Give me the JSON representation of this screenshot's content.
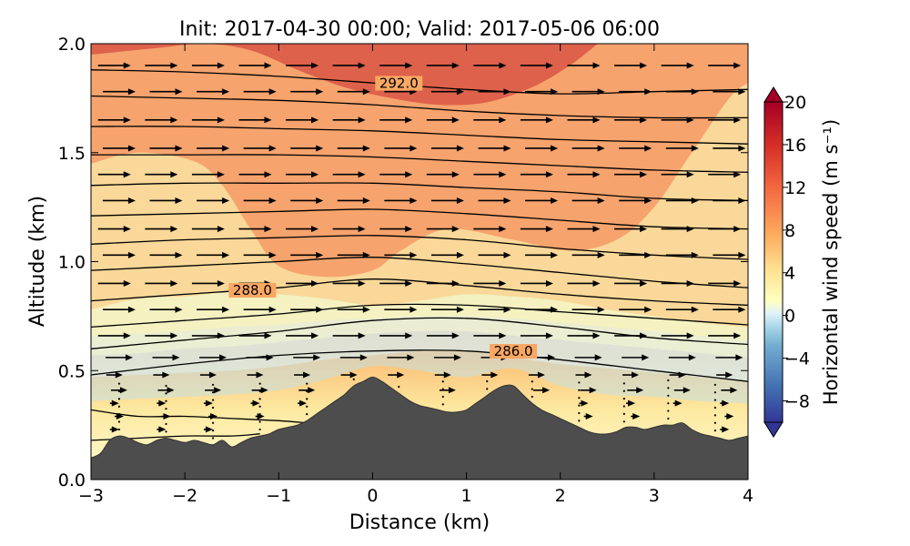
{
  "chart_data": {
    "type": "contour-cross-section",
    "title": "Init: 2017-04-30 00:00; Valid: 2017-05-06 06:00",
    "xlabel": "Distance (km)",
    "ylabel": "Altitude (km)",
    "xlim": [
      -3,
      4
    ],
    "ylim": [
      0.0,
      2.0
    ],
    "x_ticks": [
      -3,
      -2,
      -1,
      0,
      1,
      2,
      3,
      4
    ],
    "x_tick_labels": [
      "−3",
      "−2",
      "−1",
      "0",
      "1",
      "2",
      "3",
      "4"
    ],
    "y_ticks": [
      0.0,
      0.5,
      1.0,
      1.5,
      2.0
    ],
    "y_tick_labels": [
      "0.0",
      "0.5",
      "1.0",
      "1.5",
      "2.0"
    ],
    "colorbar": {
      "label": "Horizontal wind speed (m s⁻¹)",
      "range": [
        -10,
        20
      ],
      "ticks": [
        -8,
        -4,
        0,
        4,
        8,
        12,
        16,
        20
      ],
      "tick_labels": [
        "−8",
        "−4",
        "0",
        "4",
        "8",
        "12",
        "16",
        "20"
      ],
      "colormap": "RdYlBu_r"
    },
    "terrain": {
      "x": [
        -3,
        -2.9,
        -2.8,
        -2.7,
        -2.6,
        -2.5,
        -2.4,
        -2.3,
        -2.2,
        -2.1,
        -2.0,
        -1.9,
        -1.8,
        -1.7,
        -1.6,
        -1.5,
        -1.4,
        -1.3,
        -1.2,
        -1.1,
        -1.0,
        -0.9,
        -0.8,
        -0.7,
        -0.6,
        -0.5,
        -0.4,
        -0.3,
        -0.2,
        -0.1,
        0.0,
        0.1,
        0.2,
        0.3,
        0.4,
        0.5,
        0.6,
        0.7,
        0.8,
        0.9,
        1.0,
        1.1,
        1.2,
        1.3,
        1.4,
        1.5,
        1.6,
        1.7,
        1.8,
        1.9,
        2.0,
        2.1,
        2.2,
        2.3,
        2.4,
        2.5,
        2.6,
        2.7,
        2.8,
        2.9,
        3.0,
        3.1,
        3.2,
        3.3,
        3.4,
        3.5,
        3.6,
        3.7,
        3.8,
        3.9,
        4.0
      ],
      "altitude_km": [
        0.1,
        0.12,
        0.18,
        0.2,
        0.19,
        0.17,
        0.16,
        0.18,
        0.19,
        0.18,
        0.17,
        0.18,
        0.17,
        0.16,
        0.18,
        0.15,
        0.17,
        0.19,
        0.2,
        0.21,
        0.23,
        0.24,
        0.25,
        0.27,
        0.3,
        0.33,
        0.36,
        0.39,
        0.43,
        0.45,
        0.47,
        0.45,
        0.42,
        0.39,
        0.36,
        0.34,
        0.33,
        0.32,
        0.31,
        0.31,
        0.32,
        0.35,
        0.38,
        0.41,
        0.43,
        0.43,
        0.39,
        0.35,
        0.32,
        0.3,
        0.28,
        0.26,
        0.24,
        0.22,
        0.21,
        0.21,
        0.22,
        0.24,
        0.24,
        0.23,
        0.24,
        0.25,
        0.25,
        0.26,
        0.23,
        0.21,
        0.2,
        0.19,
        0.18,
        0.19,
        0.2
      ]
    },
    "wind_contours": [
      {
        "level": 18,
        "points": [
          [
            -3,
            1.95
          ],
          [
            -2.3,
            1.98
          ],
          [
            -1.8,
            2.0
          ],
          [
            -1.3,
            1.97
          ],
          [
            -0.8,
            1.88
          ],
          [
            -0.3,
            1.8
          ],
          [
            0.2,
            1.75
          ],
          [
            0.7,
            1.72
          ],
          [
            1.2,
            1.73
          ],
          [
            1.7,
            1.8
          ],
          [
            2.1,
            1.9
          ],
          [
            2.4,
            2.0
          ]
        ]
      },
      {
        "level": 14,
        "points": [
          [
            -3,
            1.45
          ],
          [
            -2.5,
            1.5
          ],
          [
            -1.9,
            1.46
          ],
          [
            -1.6,
            1.35
          ],
          [
            -1.3,
            1.15
          ],
          [
            -1.0,
            0.98
          ],
          [
            -0.5,
            0.93
          ],
          [
            0.0,
            0.96
          ],
          [
            0.3,
            1.05
          ],
          [
            0.8,
            1.15
          ],
          [
            1.5,
            1.1
          ],
          [
            2.1,
            1.05
          ],
          [
            2.6,
            1.1
          ],
          [
            3.0,
            1.25
          ],
          [
            3.4,
            1.5
          ],
          [
            3.8,
            1.75
          ],
          [
            4.0,
            1.82
          ]
        ]
      },
      {
        "level": 10,
        "points": [
          [
            -3,
            0.78
          ],
          [
            -2.5,
            0.83
          ],
          [
            -2.0,
            0.84
          ],
          [
            -1.5,
            0.86
          ],
          [
            -1.0,
            0.85
          ],
          [
            -0.5,
            0.83
          ],
          [
            0.0,
            0.8
          ],
          [
            0.5,
            0.82
          ],
          [
            1.0,
            0.85
          ],
          [
            1.5,
            0.84
          ],
          [
            2.0,
            0.82
          ],
          [
            2.5,
            0.78
          ],
          [
            3.0,
            0.75
          ],
          [
            3.5,
            0.72
          ],
          [
            4.0,
            0.7
          ]
        ]
      },
      {
        "level": 6,
        "points": [
          [
            -3,
            0.66
          ],
          [
            -2.5,
            0.67
          ],
          [
            -2.0,
            0.68
          ],
          [
            -1.5,
            0.7
          ],
          [
            -1.0,
            0.71
          ],
          [
            -0.5,
            0.73
          ],
          [
            0.0,
            0.74
          ],
          [
            0.5,
            0.75
          ],
          [
            1.0,
            0.75
          ],
          [
            1.5,
            0.74
          ],
          [
            2.0,
            0.72
          ],
          [
            2.5,
            0.7
          ],
          [
            3.0,
            0.68
          ],
          [
            3.5,
            0.66
          ],
          [
            4.0,
            0.64
          ]
        ]
      },
      {
        "level": 4,
        "points": [
          [
            -3,
            0.57
          ],
          [
            -2.5,
            0.58
          ],
          [
            -2.0,
            0.6
          ],
          [
            -1.5,
            0.61
          ],
          [
            -1.0,
            0.63
          ],
          [
            -0.5,
            0.65
          ],
          [
            0.0,
            0.67
          ],
          [
            0.5,
            0.68
          ],
          [
            1.0,
            0.68
          ],
          [
            1.5,
            0.66
          ],
          [
            2.0,
            0.64
          ],
          [
            2.5,
            0.62
          ],
          [
            3.0,
            0.6
          ],
          [
            3.5,
            0.58
          ],
          [
            4.0,
            0.56
          ]
        ]
      },
      {
        "level": 2,
        "points": [
          [
            -3,
            0.47
          ],
          [
            -2.5,
            0.48
          ],
          [
            -2.0,
            0.49
          ],
          [
            -1.5,
            0.5
          ],
          [
            -1.0,
            0.52
          ],
          [
            -0.5,
            0.55
          ],
          [
            0.0,
            0.57
          ],
          [
            0.5,
            0.59
          ],
          [
            1.0,
            0.59
          ],
          [
            1.5,
            0.56
          ],
          [
            2.0,
            0.53
          ],
          [
            2.5,
            0.51
          ],
          [
            3.0,
            0.49
          ],
          [
            3.5,
            0.47
          ],
          [
            4.0,
            0.45
          ]
        ]
      },
      {
        "level": 0,
        "points": [
          [
            -3,
            0.36
          ],
          [
            -2.5,
            0.37
          ],
          [
            -2.0,
            0.38
          ],
          [
            -1.5,
            0.39
          ],
          [
            -1.0,
            0.41
          ],
          [
            -0.5,
            0.46
          ],
          [
            0.0,
            0.52
          ],
          [
            0.5,
            0.5
          ],
          [
            1.0,
            0.47
          ],
          [
            1.5,
            0.51
          ],
          [
            2.0,
            0.43
          ],
          [
            2.5,
            0.39
          ],
          [
            3.0,
            0.38
          ],
          [
            3.5,
            0.36
          ],
          [
            4.0,
            0.35
          ]
        ]
      }
    ],
    "theta_contours": [
      {
        "level": 292.0,
        "label": "292.0",
        "label_x": 0.28,
        "label_y": 1.81,
        "points": [
          [
            -3,
            1.88
          ],
          [
            -2,
            1.87
          ],
          [
            -1,
            1.85
          ],
          [
            0,
            1.82
          ],
          [
            1,
            1.79
          ],
          [
            2,
            1.77
          ],
          [
            3,
            1.78
          ],
          [
            4,
            1.79
          ]
        ]
      },
      {
        "points": [
          [
            -3,
            1.76
          ],
          [
            -2,
            1.75
          ],
          [
            -1,
            1.74
          ],
          [
            0,
            1.72
          ],
          [
            1,
            1.69
          ],
          [
            2,
            1.67
          ],
          [
            3,
            1.66
          ],
          [
            4,
            1.66
          ]
        ]
      },
      {
        "points": [
          [
            -3,
            1.62
          ],
          [
            -2,
            1.62
          ],
          [
            -1,
            1.61
          ],
          [
            0,
            1.6
          ],
          [
            1,
            1.58
          ],
          [
            2,
            1.56
          ],
          [
            3,
            1.55
          ],
          [
            4,
            1.54
          ]
        ]
      },
      {
        "points": [
          [
            -3,
            1.49
          ],
          [
            -2,
            1.49
          ],
          [
            -1,
            1.49
          ],
          [
            0,
            1.48
          ],
          [
            1,
            1.46
          ],
          [
            2,
            1.44
          ],
          [
            3,
            1.42
          ],
          [
            4,
            1.41
          ]
        ]
      },
      {
        "points": [
          [
            -3,
            1.35
          ],
          [
            -2,
            1.36
          ],
          [
            -1,
            1.36
          ],
          [
            0,
            1.36
          ],
          [
            1,
            1.34
          ],
          [
            2,
            1.32
          ],
          [
            3,
            1.29
          ],
          [
            4,
            1.28
          ]
        ]
      },
      {
        "points": [
          [
            -3,
            1.21
          ],
          [
            -2,
            1.22
          ],
          [
            -1,
            1.23
          ],
          [
            0,
            1.24
          ],
          [
            1,
            1.22
          ],
          [
            2,
            1.19
          ],
          [
            3,
            1.16
          ],
          [
            4,
            1.15
          ]
        ]
      },
      {
        "points": [
          [
            -3,
            1.08
          ],
          [
            -2,
            1.1
          ],
          [
            -1,
            1.11
          ],
          [
            0,
            1.12
          ],
          [
            1,
            1.1
          ],
          [
            2,
            1.06
          ],
          [
            3,
            1.03
          ],
          [
            4,
            1.01
          ]
        ]
      },
      {
        "points": [
          [
            -3,
            0.96
          ],
          [
            -2,
            0.98
          ],
          [
            -1,
            1.0
          ],
          [
            0,
            1.02
          ],
          [
            1,
            0.99
          ],
          [
            2,
            0.95
          ],
          [
            3,
            0.91
          ],
          [
            4,
            0.88
          ]
        ]
      },
      {
        "level": 288.0,
        "label": "288.0",
        "label_x": -1.28,
        "label_y": 0.86,
        "points": [
          [
            -3,
            0.82
          ],
          [
            -2,
            0.85
          ],
          [
            -1,
            0.88
          ],
          [
            0,
            0.92
          ],
          [
            1,
            0.89
          ],
          [
            2,
            0.85
          ],
          [
            3,
            0.82
          ],
          [
            4,
            0.8
          ]
        ]
      },
      {
        "points": [
          [
            -3,
            0.7
          ],
          [
            -2,
            0.73
          ],
          [
            -1,
            0.76
          ],
          [
            0,
            0.8
          ],
          [
            1,
            0.8
          ],
          [
            2,
            0.77
          ],
          [
            3,
            0.74
          ],
          [
            4,
            0.71
          ]
        ]
      },
      {
        "points": [
          [
            -3,
            0.6
          ],
          [
            -2,
            0.64
          ],
          [
            -1,
            0.68
          ],
          [
            0,
            0.73
          ],
          [
            1,
            0.74
          ],
          [
            2,
            0.7
          ],
          [
            3,
            0.65
          ],
          [
            4,
            0.62
          ]
        ]
      },
      {
        "level": 286.0,
        "label": "286.0",
        "label_x": 1.5,
        "label_y": 0.58,
        "points": [
          [
            -3,
            0.48
          ],
          [
            -2,
            0.53
          ],
          [
            -1,
            0.57
          ],
          [
            0,
            0.59
          ],
          [
            1,
            0.59
          ],
          [
            2,
            0.55
          ],
          [
            3,
            0.5
          ],
          [
            4,
            0.45
          ]
        ]
      },
      {
        "points": [
          [
            -3,
            0.32
          ],
          [
            -2.5,
            0.29
          ],
          [
            -2,
            0.29
          ],
          [
            -1.5,
            0.28
          ],
          [
            -1.0,
            0.27
          ],
          [
            -0.7,
            0.26
          ]
        ]
      },
      {
        "points": [
          [
            -3,
            0.18
          ],
          [
            -2.5,
            0.19
          ],
          [
            -2.0,
            0.2
          ],
          [
            -1.5,
            0.2
          ],
          [
            -1.2,
            0.21
          ]
        ]
      }
    ],
    "wind_vectors": {
      "x_positions": [
        -3.0,
        -2.5,
        -2.0,
        -1.5,
        -1.0,
        -0.5,
        0.0,
        0.5,
        1.0,
        1.5,
        2.0,
        2.5,
        3.0,
        3.5
      ],
      "altitudes": [
        1.9,
        1.78,
        1.65,
        1.52,
        1.4,
        1.28,
        1.15,
        1.03,
        0.9,
        0.78,
        0.66,
        0.56,
        0.48,
        0.41,
        0.35,
        0.29,
        0.23
      ]
    }
  }
}
